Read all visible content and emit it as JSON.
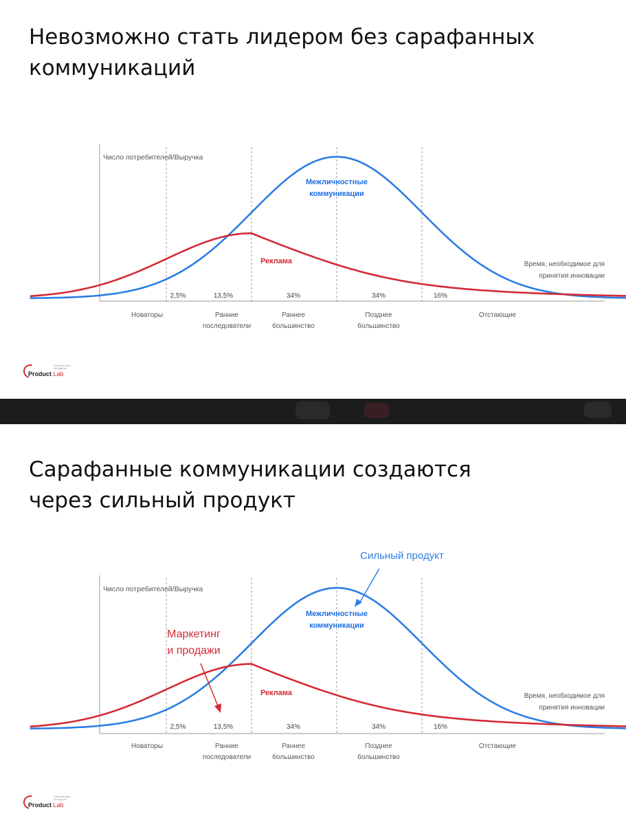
{
  "slides": [
    {
      "title_line1": "Невозможно стать лидером без сарафанных",
      "title_line2": "коммуникаций",
      "logo": {
        "brand": "Product",
        "brand_suffix": "Lab",
        "small_text": "Лаборатория брендинга"
      }
    },
    {
      "title_line1": "Сарафанные коммуникации создаются",
      "title_line2": "через сильный продукт",
      "callout_product": "Сильный продукт",
      "callout_marketing_line1": "Маркетинг",
      "callout_marketing_line2": "и продажи",
      "logo": {
        "brand": "Product",
        "brand_suffix": "Lab",
        "small_text": "Лаборатория брендинга"
      }
    }
  ],
  "chart_data": [
    {
      "type": "line",
      "ylabel": "Число потребителей/Выручка",
      "xlabel_line1": "Время, необходимое для",
      "xlabel_line2": "принятия инновации",
      "segment_shares": [
        "2,5%",
        "13,5%",
        "34%",
        "34%",
        "16%"
      ],
      "segments": [
        {
          "line1": "Новаторы",
          "line2": ""
        },
        {
          "line1": "Ранние",
          "line2": "последователи"
        },
        {
          "line1": "Раннее",
          "line2": "большинство"
        },
        {
          "line1": "Позднее",
          "line2": "большинство"
        },
        {
          "line1": "Отстающие",
          "line2": ""
        }
      ],
      "boundaries_sd": [
        -2,
        -1,
        0,
        1
      ],
      "x_range_sd": [
        -3.6,
        3.4
      ],
      "series": [
        {
          "name_line1": "Межличностные",
          "name_line2": "коммуникации",
          "color": "#2b7de3",
          "shape": "normal",
          "mean": 0,
          "sd": 1,
          "peak": 1.0
        },
        {
          "name": "Реклама",
          "color": "#d42a35",
          "shape": "skewed",
          "mode": -1.0,
          "peak": 0.46
        }
      ],
      "grid": false,
      "legend": "none"
    },
    {
      "type": "line",
      "ylabel": "Число потребителей/Выручка",
      "xlabel_line1": "Время, необходимое для",
      "xlabel_line2": "принятия инновации",
      "segment_shares": [
        "2,5%",
        "13,5%",
        "34%",
        "34%",
        "16%"
      ],
      "segments": [
        {
          "line1": "Новаторы",
          "line2": ""
        },
        {
          "line1": "Ранние",
          "line2": "последователи"
        },
        {
          "line1": "Раннее",
          "line2": "большинство"
        },
        {
          "line1": "Позднее",
          "line2": "большинство"
        },
        {
          "line1": "Отстающие",
          "line2": ""
        }
      ],
      "boundaries_sd": [
        -2,
        -1,
        0,
        1
      ],
      "x_range_sd": [
        -3.6,
        3.4
      ],
      "series": [
        {
          "name_line1": "Межличностные",
          "name_line2": "коммуникации",
          "color": "#2b7de3",
          "shape": "normal",
          "mean": 0,
          "sd": 1,
          "peak": 1.0
        },
        {
          "name": "Реклама",
          "color": "#d42a35",
          "shape": "skewed",
          "mode": -1.0,
          "peak": 0.46
        }
      ],
      "grid": false,
      "legend": "none"
    }
  ]
}
